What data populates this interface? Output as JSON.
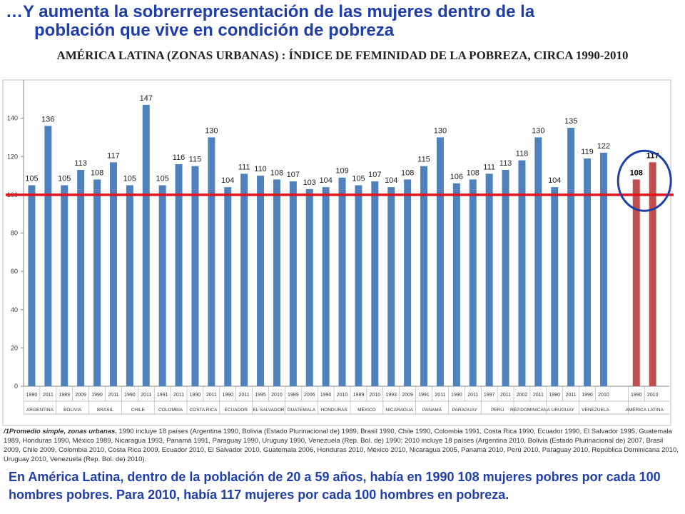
{
  "page": {
    "headline_line1": "…Y aumenta la sobrerrepresentación de las mujeres dentro de la",
    "headline_line2": "población que vive en condición de pobreza",
    "footnote_label": "/1Promedio simple, zonas urbanas.",
    "footnote_text": " 1990 incluye 18 países (Argentina 1990, Bolivia (Estado Plurinacional de) 1989, Brasil 1990, Chile 1990, Colombia 1991, Costa Rica 1990, Ecuador 1990, El Salvador 1995, Guatemala 1989, Honduras 1990, México 1989, Nicaragua 1993, Panamá 1991, Paraguay 1990, Uruguay 1990, Venezuela (Rep. Bol. de) 1990; 2010 incluye 18 países (Argentina 2010, Bolivia (Estado Plurinacional de) 2007, Brasil 2009, Chile 2009, Colombia 2010, Costa Rica 2009, Ecuador 2010, El Salvador 2010, Guatemala 2006, Honduras 2010, México 2010, Nicaragua 2005, Panamá 2010, Perú 2010, Paraguay 2010, República Dominicana 2010, Uruguay 2010, Venezuela (Rep. Bol. de) 2010).",
    "summary": "En América Latina, dentro de la población de 20 a 59 años, había en 1990 108 mujeres pobres por cada 100 hombres pobres. Para 2010, había 117 mujeres por cada 100 hombres en pobreza."
  },
  "chart_data": {
    "type": "bar",
    "title": "AMÉRICA LATINA (ZONAS URBANAS) : ÍNDICE DE FEMINIDAD DE LA POBREZA, CIRCA 1990-2010",
    "ylim": [
      0,
      160
    ],
    "yticks": [
      0,
      20,
      40,
      60,
      80,
      100,
      120,
      140
    ],
    "reference_line": 100,
    "colors": {
      "bar": "#4F81BD",
      "highlight": "#C0504D",
      "reference": "#E0141E",
      "circle": "#1F3EA8",
      "axis_text": "#333333"
    },
    "groups": [
      {
        "name": "ARGENTINA",
        "bars": [
          {
            "year": "1990",
            "value": 105
          },
          {
            "year": "2011",
            "value": 136
          }
        ]
      },
      {
        "name": "BOLIVIA",
        "bars": [
          {
            "year": "1989",
            "value": 105
          },
          {
            "year": "2009",
            "value": 113
          }
        ]
      },
      {
        "name": "BRASIL",
        "bars": [
          {
            "year": "1990",
            "value": 108
          },
          {
            "year": "2011",
            "value": 117
          }
        ]
      },
      {
        "name": "CHILE",
        "bars": [
          {
            "year": "1990",
            "value": 105
          },
          {
            "year": "2011",
            "value": 147
          }
        ]
      },
      {
        "name": "COLOMBIA",
        "bars": [
          {
            "year": "1991",
            "value": 105
          },
          {
            "year": "2011",
            "value": 116
          }
        ]
      },
      {
        "name": "COSTA RICA",
        "bars": [
          {
            "year": "1990",
            "value": 115
          },
          {
            "year": "2011",
            "value": 130
          }
        ]
      },
      {
        "name": "ECUADOR",
        "bars": [
          {
            "year": "1990",
            "value": 104
          },
          {
            "year": "2011",
            "value": 111
          }
        ]
      },
      {
        "name": "EL SALVADOR",
        "bars": [
          {
            "year": "1995",
            "value": 110
          },
          {
            "year": "2010",
            "value": 108
          }
        ]
      },
      {
        "name": "GUATEMALA",
        "bars": [
          {
            "year": "1989",
            "value": 107
          },
          {
            "year": "2006",
            "value": 103
          }
        ]
      },
      {
        "name": "HONDURAS",
        "bars": [
          {
            "year": "1990",
            "value": 104
          },
          {
            "year": "2010",
            "value": 109
          }
        ]
      },
      {
        "name": "MÉXICO",
        "bars": [
          {
            "year": "1989",
            "value": 105
          },
          {
            "year": "2010",
            "value": 107
          }
        ]
      },
      {
        "name": "NICARAGUA",
        "bars": [
          {
            "year": "1993",
            "value": 104
          },
          {
            "year": "2009",
            "value": 108
          }
        ]
      },
      {
        "name": "PANAMÁ",
        "bars": [
          {
            "year": "1991",
            "value": 115
          },
          {
            "year": "2011",
            "value": 130
          }
        ]
      },
      {
        "name": "PARAGUAY",
        "bars": [
          {
            "year": "1990",
            "value": 106
          },
          {
            "year": "2011",
            "value": 108
          }
        ]
      },
      {
        "name": "PERÚ",
        "bars": [
          {
            "year": "1997",
            "value": 111
          },
          {
            "year": "2011",
            "value": 113
          }
        ]
      },
      {
        "name": "REP.DOMINICANA",
        "bars": [
          {
            "year": "2002",
            "value": 118
          },
          {
            "year": "2011",
            "value": 130
          }
        ]
      },
      {
        "name": "URUGUAY",
        "bars": [
          {
            "year": "1990",
            "value": 104
          },
          {
            "year": "2011",
            "value": 135
          }
        ]
      },
      {
        "name": "VENEZUELA",
        "bars": [
          {
            "year": "1990",
            "value": 119
          },
          {
            "year": "2010",
            "value": 122
          }
        ]
      },
      {
        "name": "AMÉRICA LATINA",
        "highlight": true,
        "bars": [
          {
            "year": "1990",
            "value": 108
          },
          {
            "year": "2010",
            "value": 117
          }
        ]
      }
    ]
  }
}
